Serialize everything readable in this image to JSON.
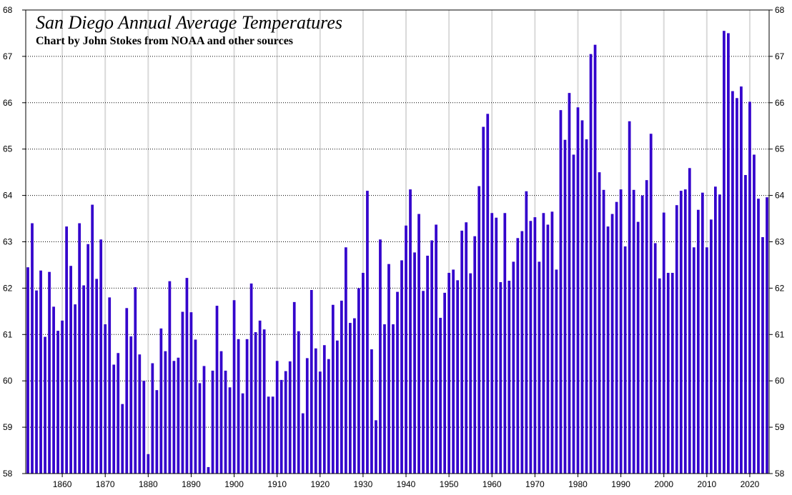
{
  "chart_data": {
    "type": "bar",
    "title": "San Diego Annual Average Temperatures",
    "subtitle": "Chart by John Stokes from NOAA and other sources",
    "xlabel": "",
    "ylabel": "",
    "ylim": [
      58,
      68
    ],
    "y_ticks": [
      58,
      59,
      60,
      61,
      62,
      63,
      64,
      65,
      66,
      67,
      68
    ],
    "x_ticks": [
      1860,
      1870,
      1880,
      1890,
      1900,
      1910,
      1920,
      1930,
      1940,
      1950,
      1960,
      1970,
      1980,
      1990,
      2000,
      2010,
      2020
    ],
    "grid": true,
    "bar_color": "#3300cc",
    "grid_color": "#d9d9d9",
    "years": [
      1852,
      1853,
      1854,
      1855,
      1856,
      1857,
      1858,
      1859,
      1860,
      1861,
      1862,
      1863,
      1864,
      1865,
      1866,
      1867,
      1868,
      1869,
      1870,
      1871,
      1872,
      1873,
      1874,
      1875,
      1876,
      1877,
      1878,
      1879,
      1880,
      1881,
      1882,
      1883,
      1884,
      1885,
      1886,
      1887,
      1888,
      1889,
      1890,
      1891,
      1892,
      1893,
      1894,
      1895,
      1896,
      1897,
      1898,
      1899,
      1900,
      1901,
      1902,
      1903,
      1904,
      1905,
      1906,
      1907,
      1908,
      1909,
      1910,
      1911,
      1912,
      1913,
      1914,
      1915,
      1916,
      1917,
      1918,
      1919,
      1920,
      1921,
      1922,
      1923,
      1924,
      1925,
      1926,
      1927,
      1928,
      1929,
      1930,
      1931,
      1932,
      1933,
      1934,
      1935,
      1936,
      1937,
      1938,
      1939,
      1940,
      1941,
      1942,
      1943,
      1944,
      1945,
      1946,
      1947,
      1948,
      1949,
      1950,
      1951,
      1952,
      1953,
      1954,
      1955,
      1956,
      1957,
      1958,
      1959,
      1960,
      1961,
      1962,
      1963,
      1964,
      1965,
      1966,
      1967,
      1968,
      1969,
      1970,
      1971,
      1972,
      1973,
      1974,
      1975,
      1976,
      1977,
      1978,
      1979,
      1980,
      1981,
      1982,
      1983,
      1984,
      1985,
      1986,
      1987,
      1988,
      1989,
      1990,
      1991,
      1992,
      1993,
      1994,
      1995,
      1996,
      1997,
      1998,
      1999,
      2000,
      2001,
      2002,
      2003,
      2004,
      2005,
      2006,
      2007,
      2008,
      2009,
      2010,
      2011,
      2012,
      2013,
      2014,
      2015,
      2016,
      2017,
      2018,
      2019,
      2020,
      2021,
      2022,
      2023,
      2024
    ],
    "values": [
      62.45,
      63.4,
      61.95,
      62.38,
      60.95,
      62.35,
      61.6,
      61.08,
      61.3,
      63.33,
      62.48,
      61.65,
      63.4,
      62.06,
      62.95,
      63.8,
      62.2,
      63.05,
      61.22,
      61.8,
      60.35,
      60.6,
      59.5,
      61.57,
      60.96,
      62.02,
      60.57,
      60.0,
      58.42,
      60.38,
      59.8,
      61.13,
      60.64,
      62.15,
      60.43,
      60.5,
      61.49,
      62.22,
      61.48,
      60.89,
      59.95,
      60.32,
      58.14,
      60.22,
      61.62,
      60.64,
      60.22,
      59.86,
      61.74,
      60.9,
      59.73,
      60.9,
      62.1,
      61.05,
      61.3,
      61.11,
      59.66,
      59.66,
      60.43,
      60.02,
      60.21,
      60.42,
      61.7,
      61.07,
      59.3,
      60.49,
      61.96,
      60.7,
      60.2,
      60.77,
      60.47,
      61.64,
      60.87,
      61.73,
      62.88,
      61.25,
      61.35,
      62.0,
      62.33,
      64.1,
      60.68,
      59.15,
      63.05,
      61.22,
      62.52,
      61.22,
      61.92,
      62.6,
      63.35,
      64.13,
      62.77,
      63.6,
      61.94,
      62.7,
      63.03,
      63.37,
      61.36,
      61.9,
      62.33,
      62.4,
      62.17,
      63.24,
      63.42,
      62.32,
      63.12,
      64.2,
      65.48,
      65.76,
      63.62,
      63.52,
      62.13,
      63.62,
      62.16,
      62.57,
      63.08,
      63.23,
      64.09,
      63.45,
      63.53,
      62.57,
      63.62,
      63.37,
      63.65,
      62.4,
      65.84,
      65.2,
      66.21,
      64.88,
      65.9,
      65.62,
      65.21,
      67.05,
      67.25,
      64.5,
      64.12,
      63.33,
      63.6,
      63.86,
      64.13,
      62.9,
      65.6,
      64.12,
      63.43,
      64.0,
      64.33,
      65.33,
      62.97,
      62.21,
      63.63,
      62.33,
      62.33,
      63.79,
      64.1,
      64.13,
      64.59,
      62.88,
      63.69,
      64.06,
      62.88,
      63.48,
      64.19,
      64.02,
      67.55,
      67.5,
      66.25,
      66.1,
      66.35,
      64.44,
      66.02,
      64.88,
      63.93,
      63.1,
      63.96
    ]
  }
}
